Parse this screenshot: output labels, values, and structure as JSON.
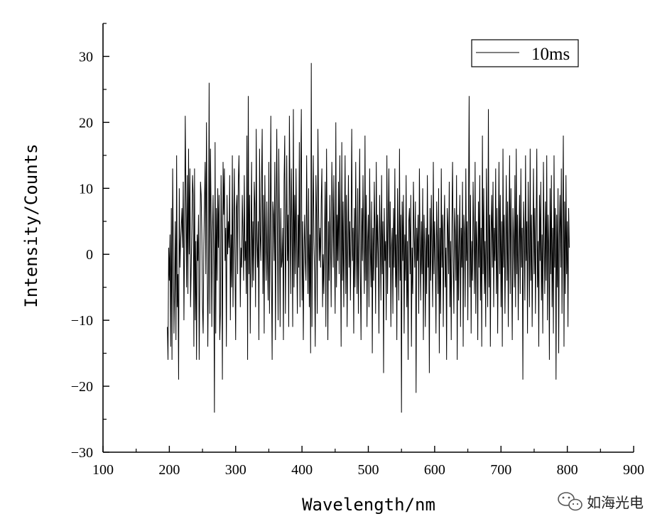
{
  "chart_data": {
    "type": "line",
    "xlabel": "Wavelength/nm",
    "ylabel": "Intensity/Counts",
    "xlim": [
      100,
      900
    ],
    "ylim": [
      -30,
      35
    ],
    "x_ticks": [
      100,
      200,
      300,
      400,
      500,
      600,
      700,
      800,
      900
    ],
    "y_ticks": [
      -30,
      -20,
      -10,
      0,
      10,
      20,
      30
    ],
    "x_tick_labels": [
      "100",
      "200",
      "300",
      "400",
      "500",
      "600",
      "700",
      "800",
      "900"
    ],
    "y_tick_labels": [
      "−30",
      "−20",
      "−10",
      "0",
      "10",
      "20",
      "30"
    ],
    "grid": false,
    "legend_position": "top-right",
    "series": [
      {
        "name": "10ms",
        "color": "#000000",
        "x_start": 197,
        "x_end": 812,
        "x_step": 1,
        "values": [
          -11,
          -16,
          1,
          -4,
          3,
          -14,
          7,
          -16,
          13,
          1,
          -12,
          -5,
          5,
          -13,
          15,
          -8,
          -3,
          -19,
          10,
          -2,
          2,
          4,
          7,
          1,
          11,
          -10,
          2,
          21,
          8,
          -5,
          12,
          -6,
          16,
          0,
          13,
          -8,
          -2,
          4,
          12,
          9,
          -14,
          13,
          -10,
          2,
          -16,
          3,
          -1,
          6,
          -16,
          -4,
          11,
          9,
          3,
          -8,
          -12,
          1,
          8,
          14,
          -3,
          20,
          2,
          -14,
          -2,
          26,
          -9,
          16,
          6,
          -11,
          3,
          9,
          -2,
          -24,
          17,
          -12,
          7,
          -4,
          10,
          1,
          9,
          -13,
          -9,
          12,
          3,
          -19,
          14,
          6,
          13,
          -1,
          4,
          -14,
          9,
          0,
          5,
          1,
          12,
          -10,
          3,
          -5,
          15,
          -8,
          4,
          13,
          -2,
          -13,
          7,
          9,
          -3,
          11,
          15,
          5,
          -8,
          1,
          -2,
          9,
          3,
          -4,
          12,
          -1,
          2,
          -6,
          18,
          -16,
          24,
          -3,
          9,
          -12,
          1,
          14,
          -5,
          5,
          -4,
          11,
          7,
          -8,
          19,
          2,
          -2,
          5,
          -13,
          16,
          3,
          -1,
          11,
          19,
          -6,
          9,
          -12,
          12,
          2,
          -4,
          8,
          -1,
          -7,
          14,
          -9,
          3,
          21,
          -3,
          -16,
          8,
          6,
          -1,
          14,
          -13,
          6,
          19,
          2,
          -10,
          16,
          4,
          -11,
          7,
          -2,
          -1,
          4,
          -13,
          11,
          18,
          -9,
          2,
          15,
          -1,
          6,
          -11,
          21,
          8,
          -6,
          13,
          4,
          -11,
          22,
          -5,
          9,
          -3,
          13,
          1,
          -9,
          6,
          -2,
          17,
          -8,
          12,
          22,
          -7,
          5,
          -13,
          0,
          6,
          -1,
          -4,
          15,
          2,
          -6,
          10,
          -8,
          3,
          -15,
          29,
          -11,
          4,
          15,
          2,
          -3,
          -14,
          12,
          6,
          -9,
          19,
          7,
          -1,
          4,
          -2,
          8,
          13,
          -8,
          0,
          -6,
          3,
          11,
          -11,
          16,
          2,
          -13,
          5,
          -4,
          9,
          2,
          -8,
          14,
          7,
          -2,
          12,
          0,
          -9,
          20,
          -5,
          6,
          -1,
          11,
          -3,
          15,
          2,
          -14,
          17,
          -4,
          8,
          -8,
          3,
          15,
          -6,
          9,
          -11,
          1,
          12,
          -2,
          5,
          -7,
          3,
          19,
          -1,
          4,
          -12,
          7,
          -5,
          14,
          1,
          -6,
          10,
          -9,
          4,
          16,
          -3,
          -13,
          7,
          -1,
          12,
          2,
          -6,
          18,
          -4,
          9,
          -11,
          2,
          6,
          -8,
          13,
          1,
          -5,
          8,
          -15,
          4,
          -4,
          11,
          3,
          -9,
          14,
          -2,
          6,
          0,
          -12,
          9,
          3,
          -7,
          12,
          -3,
          5,
          -18,
          7,
          -1,
          2,
          -10,
          15,
          -6,
          5,
          13,
          -2,
          8,
          -11,
          1,
          4,
          -9,
          7,
          -2,
          13,
          -5,
          3,
          -13,
          10,
          1,
          -7,
          16,
          -4,
          6,
          -24,
          8,
          -1,
          9,
          -12,
          3,
          -4,
          12,
          -8,
          2,
          -16,
          5,
          7,
          -3,
          9,
          -14,
          1,
          -6,
          11,
          3,
          -2,
          8,
          -21,
          4,
          -1,
          6,
          -9,
          13,
          2,
          -7,
          5,
          -3,
          10,
          -13,
          6,
          1,
          -11,
          4,
          -6,
          12,
          -2,
          3,
          -18,
          7,
          -4,
          9,
          1,
          -8,
          14,
          -3,
          5,
          -1,
          -12,
          8,
          2,
          -6,
          10,
          -15,
          4,
          -9,
          13,
          -2,
          6,
          -11,
          3,
          9,
          -5,
          1,
          -16,
          7,
          4,
          -3,
          11,
          -8,
          2,
          -13,
          5,
          14,
          -1,
          -9,
          7,
          3,
          -4,
          12,
          -16,
          6,
          -7,
          2,
          9,
          -11,
          4,
          -2,
          11,
          -14,
          6,
          3,
          -8,
          13,
          -1,
          5,
          -10,
          7,
          24,
          -5,
          9,
          -12,
          2,
          -4,
          11,
          3,
          -6,
          14,
          -9,
          5,
          1,
          -13,
          8,
          -2,
          12,
          -7,
          4,
          -14,
          18,
          -3,
          10,
          -6,
          2,
          -11,
          13,
          1,
          -8,
          22,
          -5,
          6,
          -14,
          3,
          9,
          -2,
          11,
          -8,
          4,
          -1,
          13,
          -6,
          7,
          -12,
          2,
          14,
          -3,
          9,
          -8,
          5,
          -14,
          16,
          -2,
          6,
          -9,
          1,
          12,
          -4,
          8,
          -11,
          3,
          15,
          -6,
          10,
          -1,
          -13,
          7,
          2,
          -5,
          12,
          -8,
          16,
          -3,
          6,
          -10,
          1,
          9,
          -6,
          13,
          -2,
          4,
          -19,
          8,
          3,
          -7,
          15,
          -1,
          5,
          -12,
          11,
          2,
          -8,
          16,
          -4,
          6,
          -11,
          1,
          13,
          -3,
          7,
          -9,
          4,
          16,
          -5,
          2,
          -14,
          9,
          -1,
          11,
          -7,
          3,
          -12,
          14,
          2,
          -6,
          8,
          -4,
          15,
          -10,
          6,
          1,
          -16,
          10,
          -3,
          12,
          -8,
          4,
          -12,
          15,
          -2,
          7,
          -19,
          6,
          -5,
          10,
          -15,
          3,
          9,
          -2,
          13,
          -9,
          4,
          18,
          -14,
          8,
          -6,
          12,
          -3,
          5,
          -11,
          7,
          1
        ]
      }
    ]
  },
  "watermark": {
    "text": "如海光电",
    "icon": "wechat-logo-icon"
  }
}
